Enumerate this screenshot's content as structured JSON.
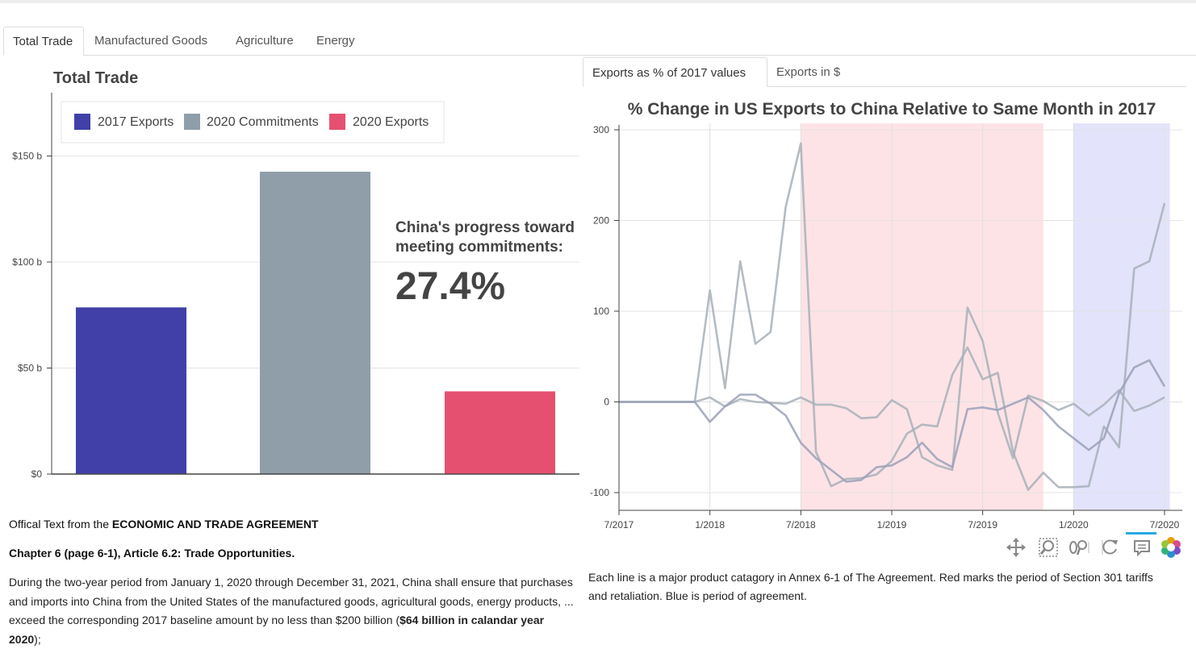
{
  "tabs": [
    "Total Trade",
    "Manufactured Goods",
    "Agriculture",
    "Energy"
  ],
  "subtabs": [
    "Exports as % of 2017 values",
    "Exports in $"
  ],
  "left_chart": {
    "title": "Total Trade",
    "y_ticks": [
      "$150 b",
      "$100 b",
      "$50 b",
      "$0"
    ],
    "legend": [
      {
        "label": "2017 Exports",
        "color": "#4040a8"
      },
      {
        "label": "2020 Commitments",
        "color": "#8f9ea9"
      },
      {
        "label": "2020 Exports",
        "color": "#e55070"
      }
    ],
    "progress_label": "China's progress toward meeting commitments:",
    "progress_value": "27.4%"
  },
  "right_chart": {
    "title": "% Change in US Exports to China Relative to Same Month in 2017",
    "y_ticks": [
      "300",
      "200",
      "100",
      "0",
      "-100"
    ],
    "x_ticks": [
      "7/2017",
      "1/2018",
      "7/2018",
      "1/2019",
      "7/2019",
      "1/2020",
      "7/2020"
    ]
  },
  "chart_data": [
    {
      "type": "bar",
      "title": "Total Trade",
      "categories": [
        "2017 Exports",
        "2020 Commitments",
        "2020 Exports"
      ],
      "values": [
        78.6,
        142.6,
        39.0
      ],
      "colors": [
        "#4040a8",
        "#8f9ea9",
        "#e55070"
      ],
      "ylabel": "",
      "ylim": [
        0,
        150
      ],
      "y_tick_labels": [
        "$0",
        "$50 b",
        "$100 b",
        "$150 b"
      ],
      "legend": "top-left",
      "grid": true
    },
    {
      "type": "line",
      "title": "% Change in US Exports to China Relative to Same Month in 2017",
      "x": [
        "2017-07",
        "2017-08",
        "2017-09",
        "2017-10",
        "2017-11",
        "2017-12",
        "2018-01",
        "2018-02",
        "2018-03",
        "2018-04",
        "2018-05",
        "2018-06",
        "2018-07",
        "2018-08",
        "2018-09",
        "2018-10",
        "2018-11",
        "2018-12",
        "2019-01",
        "2019-02",
        "2019-03",
        "2019-04",
        "2019-05",
        "2019-06",
        "2019-07",
        "2019-08",
        "2019-09",
        "2019-10",
        "2019-11",
        "2019-12",
        "2020-01",
        "2020-02",
        "2020-03",
        "2020-04",
        "2020-05",
        "2020-06",
        "2020-07"
      ],
      "x_tick_labels": [
        "7/2017",
        "1/2018",
        "7/2018",
        "1/2019",
        "7/2019",
        "1/2020",
        "7/2020"
      ],
      "ylim": [
        -120,
        305
      ],
      "y_ticks": [
        300,
        200,
        100,
        0,
        -100
      ],
      "shaded_periods": [
        {
          "from": "2018-07",
          "to": "2019-11",
          "color": "#fde3e6"
        },
        {
          "from": "2020-01",
          "to": "2020-07",
          "color": "#e3e3fc"
        }
      ],
      "series": [
        {
          "color": "#a7b0b8",
          "values": [
            0,
            0,
            0,
            0,
            0,
            0,
            123,
            15,
            155,
            64,
            77,
            215,
            285,
            -55,
            -93,
            -85,
            -84,
            -80,
            -65,
            -35,
            -25,
            -27,
            30,
            60,
            25,
            32,
            -55,
            -97,
            -78,
            -94,
            -94,
            -93,
            -27,
            -50,
            147,
            155,
            219
          ]
        },
        {
          "color": "#a7b0b8",
          "values": [
            0,
            0,
            0,
            0,
            0,
            0,
            5,
            -5,
            3,
            0,
            -1,
            -2,
            5,
            -3,
            -3,
            -7,
            -18,
            -17,
            2,
            -8,
            -61,
            -70,
            -75,
            104,
            67,
            -12,
            -62,
            7,
            1,
            -9,
            -2,
            -15,
            -3,
            13,
            -10,
            -4,
            5
          ]
        },
        {
          "color": "#9aa0b8",
          "values": [
            0,
            0,
            0,
            0,
            0,
            0,
            -22,
            -5,
            8,
            8,
            -2,
            -15,
            -45,
            -62,
            -75,
            -88,
            -86,
            -72,
            -70,
            -61,
            -45,
            -63,
            -72,
            -8,
            -6,
            -9,
            -2,
            5,
            -9,
            -27,
            -40,
            -53,
            -40,
            10,
            38,
            46,
            17
          ]
        }
      ],
      "grid": true
    }
  ],
  "agreement": {
    "line1_prefix": "Offical Text from the ",
    "line1_bold": "ECONOMIC AND TRADE AGREEMENT",
    "heading": "Chapter 6 (page 6-1), Article 6.2: Trade Opportunities.",
    "body_prefix": "During the two-year period from January 1, 2020 through December 31, 2021, China shall ensure that purchases and imports into China from the United States of the manufactured goods, agricultural goods, energy products, ... exceed the corresponding 2017 baseline amount by no less than $200 billion (",
    "body_bold": "$64 billion in calandar year 2020",
    "body_suffix": ");"
  },
  "caption": "Each line is a major product catagory in Annex 6-1 of The Agreement. Red marks the period of Section 301 tariffs and retaliation. Blue is period of agreement.",
  "toolbar": {
    "tools": [
      "pan-icon",
      "box-zoom-icon",
      "wheel-zoom-icon",
      "reset-icon",
      "hover-icon",
      "bokeh-logo-icon"
    ]
  }
}
